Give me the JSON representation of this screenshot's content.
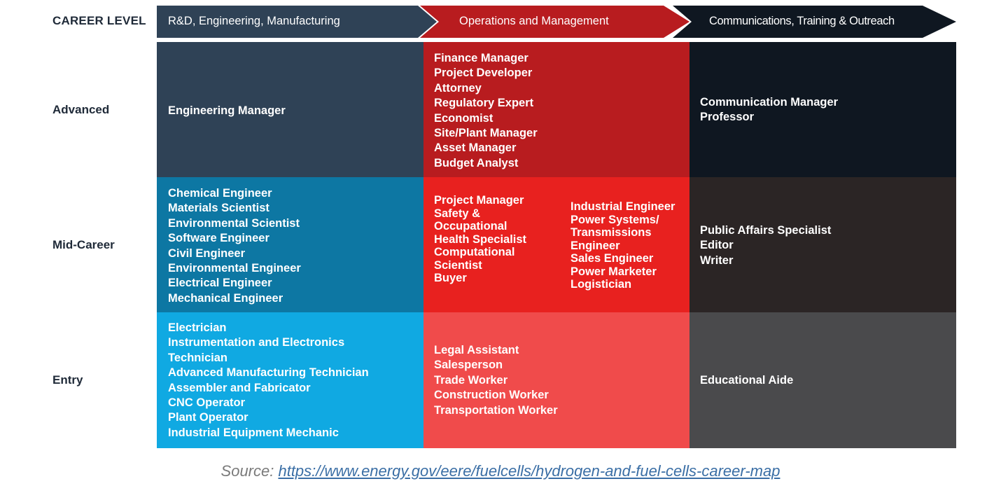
{
  "header": {
    "career_level_label": "CAREER LEVEL"
  },
  "columns": [
    {
      "label": "R&D, Engineering, Manufacturing",
      "color": "#2f4256"
    },
    {
      "label": "Operations and Management",
      "color": "#b81c1f"
    },
    {
      "label": "Communications, Training & Outreach",
      "color": "#0f1721"
    }
  ],
  "rows": [
    {
      "label": "Advanced"
    },
    {
      "label": "Mid-Career"
    },
    {
      "label": "Entry"
    }
  ],
  "cells": {
    "advanced": {
      "rd": [
        "Engineering Manager"
      ],
      "ops": [
        "Finance Manager",
        "Project Developer",
        "Attorney",
        "Regulatory Expert",
        "Economist",
        "Site/Plant Manager",
        "Asset Manager",
        "Budget Analyst"
      ],
      "comm": [
        "Communication Manager",
        "Professor"
      ]
    },
    "mid": {
      "rd": [
        "Chemical Engineer",
        "Materials Scientist",
        "Environmental Scientist",
        "Software Engineer",
        "Civil Engineer",
        "Environmental Engineer",
        "Electrical Engineer",
        "Mechanical Engineer"
      ],
      "ops_left": [
        "Project Manager",
        "Safety &",
        "Occupational",
        "Health Specialist",
        "Computational",
        "Scientist",
        "Buyer"
      ],
      "ops_right": [
        "Industrial Engineer",
        "Power Systems/",
        "Transmissions",
        "Engineer",
        "Sales Engineer",
        "Power Marketer",
        "Logistician"
      ],
      "comm": [
        "Public Affairs Specialist",
        "Editor",
        "Writer"
      ]
    },
    "entry": {
      "rd": [
        "Electrician",
        "Instrumentation and Electronics",
        "Technician",
        "Advanced Manufacturing Technician",
        "Assembler and Fabricator",
        "CNC Operator",
        "Plant Operator",
        "Industrial Equipment Mechanic"
      ],
      "ops": [
        "Legal Assistant",
        "Salesperson",
        "Trade Worker",
        "Construction Worker",
        "Transportation Worker"
      ],
      "comm": [
        "Educational Aide"
      ]
    }
  },
  "cell_colors": {
    "advanced": [
      "#2f4256",
      "#b81c1f",
      "#0f1721"
    ],
    "mid": [
      "#0d77a3",
      "#e8211f",
      "#2b2525"
    ],
    "entry": [
      "#10a9e2",
      "#f04b4b",
      "#4a4a4c"
    ]
  },
  "source": {
    "prefix": "Source: ",
    "link": "https://www.energy.gov/eere/fuelcells/hydrogen-and-fuel-cells-career-map"
  }
}
